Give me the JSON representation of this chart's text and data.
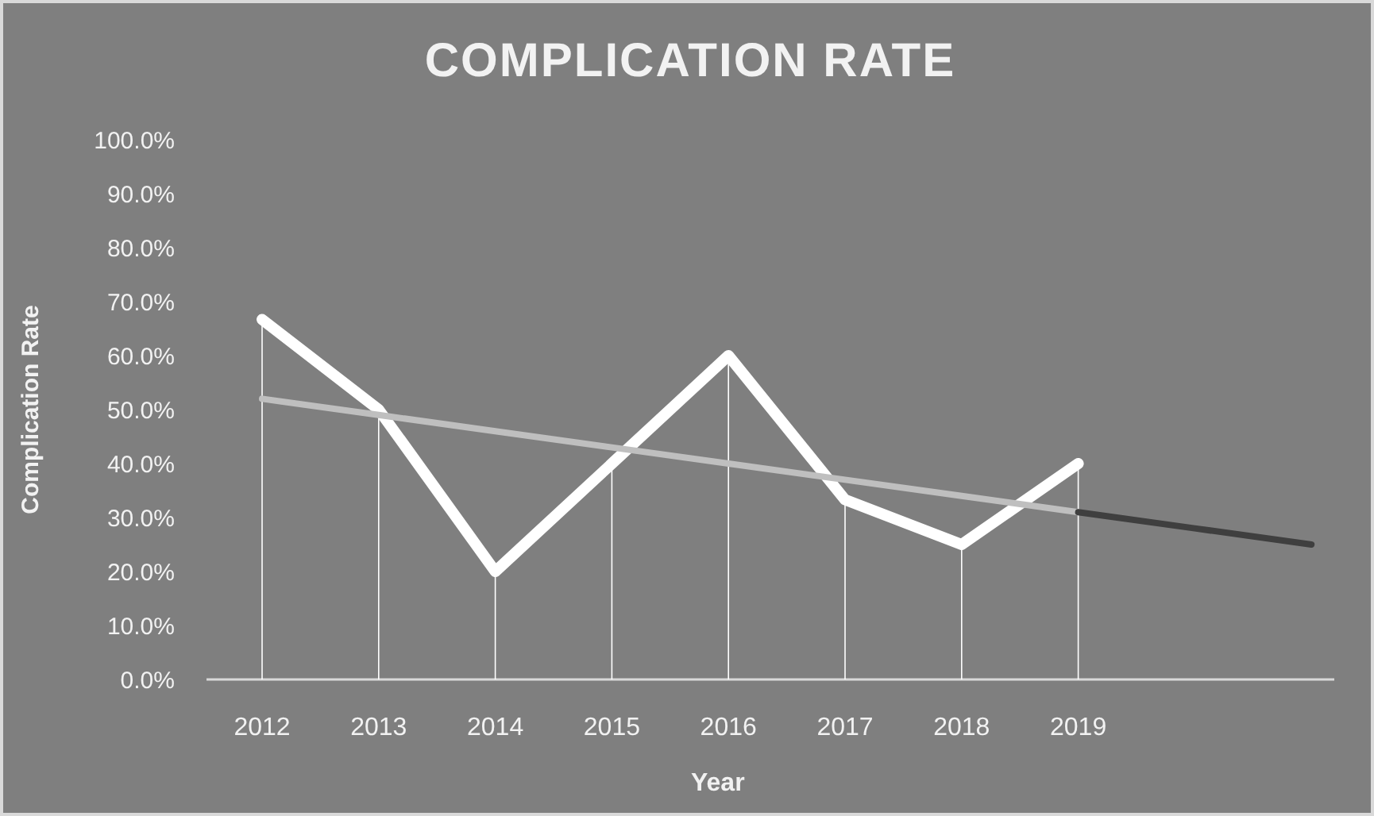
{
  "chart_data": {
    "type": "line",
    "title": "COMPLICATION RATE",
    "xlabel": "Year",
    "ylabel": "Complication Rate",
    "categories": [
      "2012",
      "2013",
      "2014",
      "2015",
      "2016",
      "2017",
      "2018",
      "2019",
      null,
      null
    ],
    "series": [
      {
        "color": "#ffffff",
        "values": [
          66.7,
          50,
          20,
          40,
          60,
          33.3,
          25,
          40,
          null,
          null
        ],
        "errors": [
          [
            0,
            66.7
          ],
          [
            0,
            50
          ],
          [
            0,
            20
          ],
          [
            0,
            40
          ],
          [
            0,
            60
          ],
          [
            0,
            33.3
          ],
          [
            0,
            25
          ],
          [
            0,
            40
          ],
          null,
          null
        ]
      },
      {
        "color": "#bfbfbf",
        "values": [
          52,
          49,
          46,
          43,
          40,
          37,
          34,
          31,
          null,
          null
        ]
      },
      {
        "color": "#3f3f3f",
        "values": [
          null,
          null,
          null,
          null,
          null,
          null,
          null,
          31,
          28,
          25
        ]
      }
    ],
    "ylim": [
      0,
      100
    ],
    "yticks": [
      {
        "value": 0,
        "label": "0.0%"
      },
      {
        "value": 10,
        "label": "10.0%"
      },
      {
        "value": 20,
        "label": "20.0%"
      },
      {
        "value": 30,
        "label": "30.0%"
      },
      {
        "value": 40,
        "label": "40.0%"
      },
      {
        "value": 50,
        "label": "50.0%"
      },
      {
        "value": 60,
        "label": "60.0%"
      },
      {
        "value": 70,
        "label": "70.0%"
      },
      {
        "value": 80,
        "label": "80.0%"
      },
      {
        "value": 90,
        "label": "90.0%"
      },
      {
        "value": 100,
        "label": "100.0%"
      }
    ],
    "grid": false,
    "marker": "none",
    "line_style": "solid"
  }
}
